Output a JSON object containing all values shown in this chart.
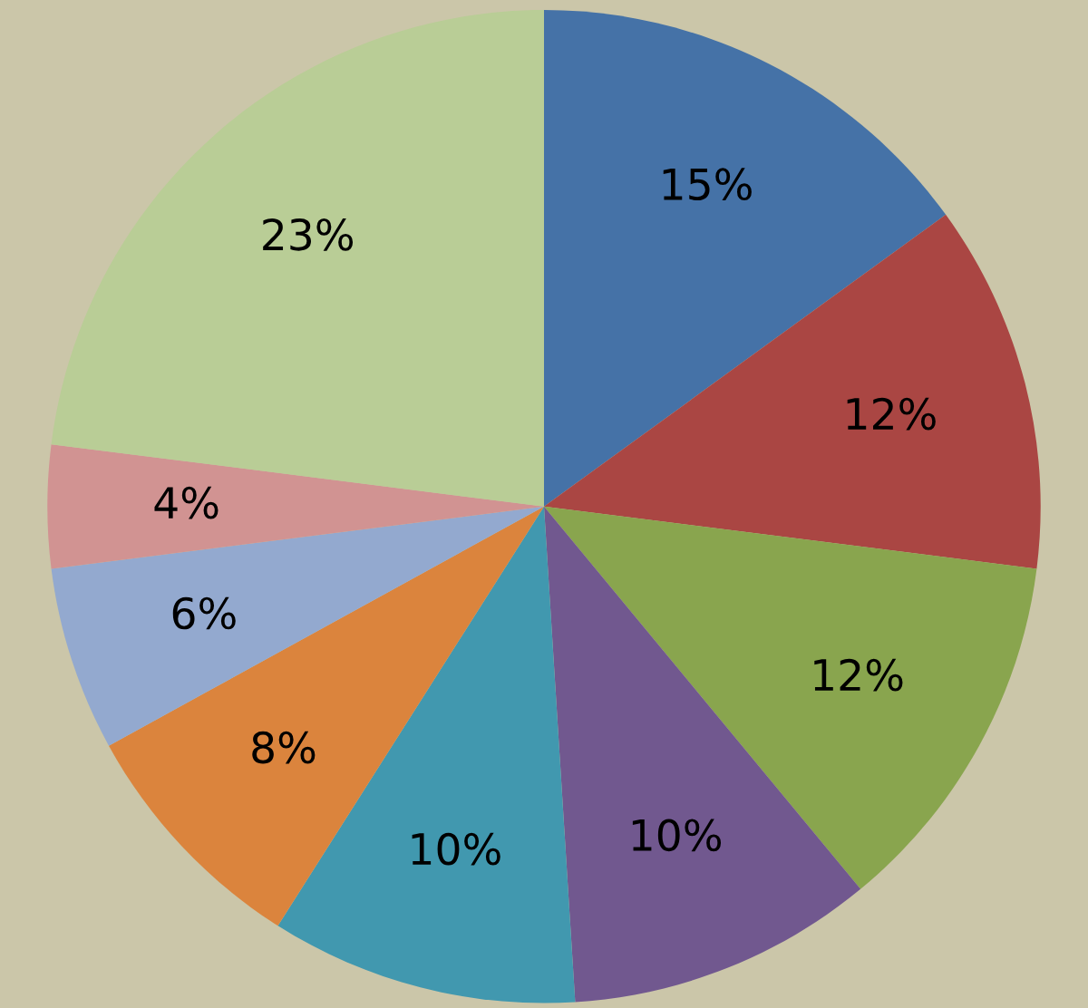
{
  "chart_data": {
    "type": "pie",
    "categories": [
      null,
      null,
      null,
      null,
      null,
      null,
      null,
      null,
      null
    ],
    "values": [
      15,
      12,
      12,
      10,
      10,
      8,
      6,
      4,
      23
    ],
    "value_labels": [
      "15%",
      "12%",
      "12%",
      "10%",
      "10%",
      "8%",
      "6%",
      "4%",
      "23%"
    ],
    "colors": [
      "#4572a7",
      "#aa4643",
      "#89a54e",
      "#71588f",
      "#4198af",
      "#db843d",
      "#93a9cf",
      "#d19392",
      "#b9cd96"
    ]
  }
}
